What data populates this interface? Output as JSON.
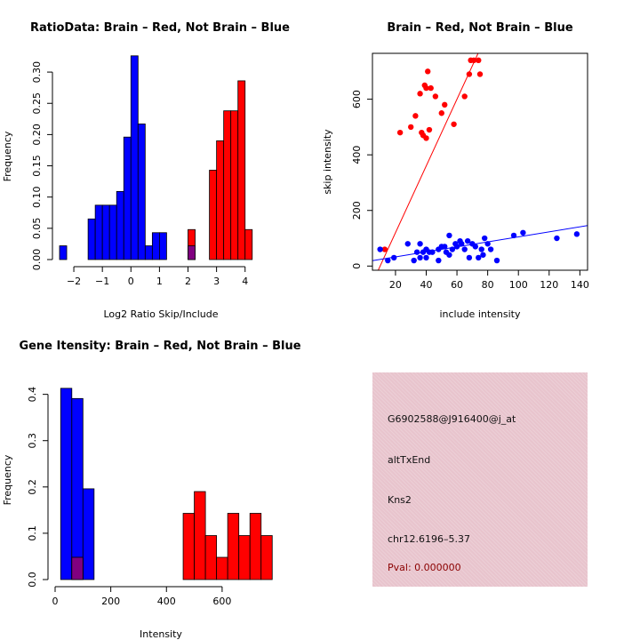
{
  "colors": {
    "brain": "#ff0000",
    "not_brain": "#0000ff",
    "overlap": "#800080",
    "panel_bg": "#e8c4cd",
    "pval": "#8b0000"
  },
  "chart_data": [
    {
      "type": "bar",
      "id": "ratio-hist",
      "title": "RatioData: Brain – Red, Not Brain – Blue",
      "xlabel": "Log2 Ratio Skip/Include",
      "ylabel": "Frequency",
      "xlim": [
        -2.5,
        4.6
      ],
      "ylim": [
        0,
        0.33
      ],
      "xticks": [
        -2,
        -1,
        0,
        1,
        2,
        3,
        4
      ],
      "xtick_labels": [
        "−2",
        "−1",
        "0",
        "1",
        "2",
        "3",
        "4"
      ],
      "yticks": [
        0.0,
        0.05,
        0.1,
        0.15,
        0.2,
        0.25,
        0.3
      ],
      "ytick_labels": [
        "0.00",
        "0.05",
        "0.10",
        "0.15",
        "0.20",
        "0.25",
        "0.30"
      ],
      "series": [
        {
          "name": "Not Brain",
          "color": "blue",
          "bins": [
            [
              -2.5,
              -2.25,
              0.022
            ],
            [
              -1.5,
              -1.25,
              0.065
            ],
            [
              -1.25,
              -1.0,
              0.087
            ],
            [
              -1.0,
              -0.75,
              0.087
            ],
            [
              -0.75,
              -0.5,
              0.087
            ],
            [
              -0.5,
              -0.25,
              0.109
            ],
            [
              -0.25,
              0.0,
              0.196
            ],
            [
              0.0,
              0.25,
              0.326
            ],
            [
              0.25,
              0.5,
              0.217
            ],
            [
              0.5,
              0.75,
              0.022
            ],
            [
              0.75,
              1.0,
              0.043
            ],
            [
              1.0,
              1.25,
              0.043
            ]
          ]
        },
        {
          "name": "Brain",
          "color": "red",
          "bins": [
            [
              2.0,
              2.25,
              0.048
            ],
            [
              2.75,
              3.0,
              0.143
            ],
            [
              3.0,
              3.25,
              0.19
            ],
            [
              3.25,
              3.5,
              0.238
            ],
            [
              3.5,
              3.75,
              0.238
            ],
            [
              3.75,
              4.0,
              0.286
            ],
            [
              4.0,
              4.25,
              0.048
            ]
          ]
        }
      ],
      "overlap": [
        [
          2.0,
          2.25,
          0.022
        ]
      ]
    },
    {
      "type": "scatter",
      "id": "skip-scatter",
      "title": "Brain – Red, Not Brain – Blue",
      "xlabel": "include intensity",
      "ylabel": "skip intensity",
      "xlim": [
        5,
        145
      ],
      "ylim": [
        -15,
        765
      ],
      "xticks": [
        20,
        40,
        60,
        80,
        100,
        120,
        140
      ],
      "yticks": [
        0,
        200,
        400,
        600
      ],
      "series": [
        {
          "name": "Brain",
          "color": "red",
          "points": [
            [
              13,
              60
            ],
            [
              23,
              480
            ],
            [
              30,
              500
            ],
            [
              33,
              540
            ],
            [
              36,
              620
            ],
            [
              37,
              480
            ],
            [
              38,
              470
            ],
            [
              39,
              650
            ],
            [
              40,
              460
            ],
            [
              40,
              640
            ],
            [
              41,
              700
            ],
            [
              42,
              490
            ],
            [
              43,
              640
            ],
            [
              46,
              610
            ],
            [
              50,
              550
            ],
            [
              52,
              580
            ],
            [
              58,
              510
            ],
            [
              65,
              610
            ],
            [
              68,
              690
            ],
            [
              69,
              740
            ],
            [
              71,
              740
            ],
            [
              75,
              690
            ],
            [
              74,
              740
            ]
          ]
        },
        {
          "name": "Not Brain",
          "color": "blue",
          "points": [
            [
              10,
              60
            ],
            [
              15,
              20
            ],
            [
              19,
              30
            ],
            [
              28,
              80
            ],
            [
              32,
              20
            ],
            [
              34,
              50
            ],
            [
              36,
              30
            ],
            [
              36,
              80
            ],
            [
              38,
              50
            ],
            [
              40,
              60
            ],
            [
              40,
              30
            ],
            [
              42,
              50
            ],
            [
              44,
              50
            ],
            [
              48,
              60
            ],
            [
              48,
              20
            ],
            [
              50,
              70
            ],
            [
              52,
              70
            ],
            [
              53,
              50
            ],
            [
              55,
              40
            ],
            [
              55,
              110
            ],
            [
              57,
              60
            ],
            [
              59,
              80
            ],
            [
              60,
              70
            ],
            [
              62,
              90
            ],
            [
              63,
              80
            ],
            [
              65,
              60
            ],
            [
              67,
              90
            ],
            [
              68,
              30
            ],
            [
              70,
              80
            ],
            [
              72,
              70
            ],
            [
              74,
              30
            ],
            [
              76,
              60
            ],
            [
              77,
              40
            ],
            [
              78,
              100
            ],
            [
              80,
              80
            ],
            [
              82,
              60
            ],
            [
              86,
              20
            ],
            [
              97,
              110
            ],
            [
              103,
              120
            ],
            [
              125,
              100
            ],
            [
              138,
              115
            ]
          ]
        }
      ],
      "fits": [
        {
          "name": "Brain fit",
          "color": "red",
          "intercept": -120,
          "slope": 12.0
        },
        {
          "name": "Not Brain fit",
          "color": "blue",
          "intercept": 15,
          "slope": 0.9
        }
      ]
    },
    {
      "type": "bar",
      "id": "intensity-hist",
      "title": "Gene Itensity: Brain – Red, Not Brain – Blue",
      "xlabel": "Intensity",
      "ylabel": "Frequency",
      "xlim": [
        0,
        760
      ],
      "ylim": [
        0,
        0.43
      ],
      "xticks": [
        0,
        200,
        400,
        600
      ],
      "xtick_labels": [
        "0",
        "200",
        "400",
        "600"
      ],
      "yticks": [
        0.0,
        0.1,
        0.2,
        0.3,
        0.4
      ],
      "ytick_labels": [
        "0.0",
        "0.1",
        "0.2",
        "0.3",
        "0.4"
      ],
      "series": [
        {
          "name": "Not Brain",
          "color": "blue",
          "bins": [
            [
              20,
              60,
              0.413
            ],
            [
              60,
              100,
              0.391
            ],
            [
              100,
              140,
              0.196
            ]
          ]
        },
        {
          "name": "Brain",
          "color": "red",
          "bins": [
            [
              60,
              100,
              0.048
            ],
            [
              460,
              500,
              0.143
            ],
            [
              500,
              540,
              0.19
            ],
            [
              540,
              580,
              0.095
            ],
            [
              580,
              620,
              0.048
            ],
            [
              620,
              660,
              0.143
            ],
            [
              660,
              700,
              0.095
            ],
            [
              700,
              740,
              0.143
            ],
            [
              740,
              780,
              0.095
            ]
          ]
        }
      ],
      "overlap": [
        [
          60,
          100,
          0.048
        ]
      ]
    }
  ],
  "info_panel": {
    "probe_id": "G6902588@J916400@j_at",
    "event_type": "altTxEnd",
    "gene": "Kns2",
    "location": "chr12.6196–5.37",
    "pval": "Pval: 0.000000"
  }
}
